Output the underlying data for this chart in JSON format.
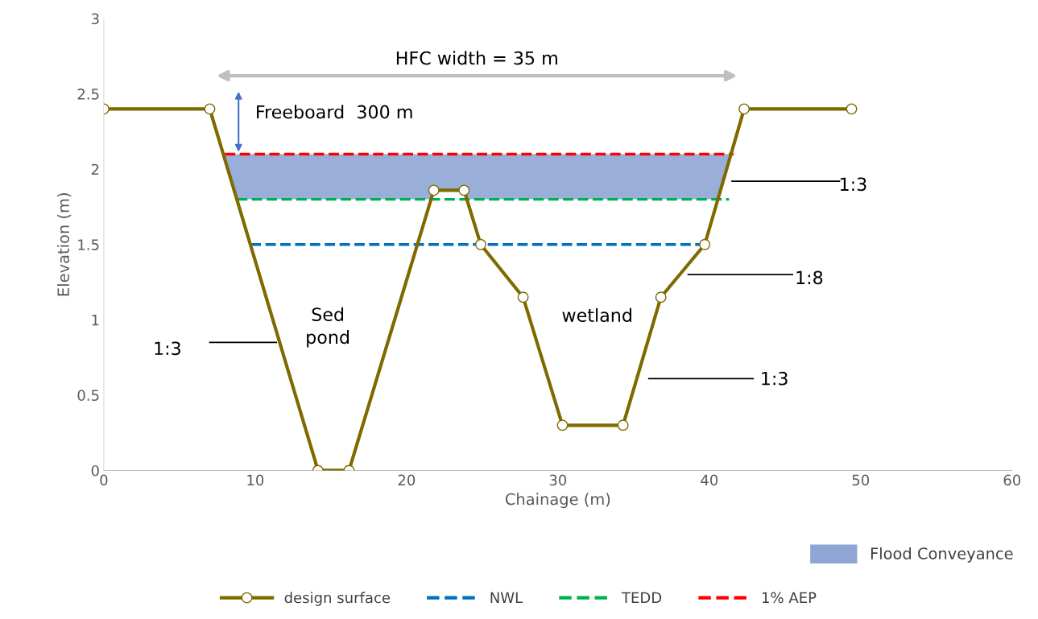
{
  "chart_data": {
    "type": "line",
    "xlabel": "Chainage (m)",
    "ylabel": "Elevation (m)",
    "xlim": [
      0,
      60
    ],
    "xticks": [
      0,
      10,
      20,
      30,
      40,
      50,
      60
    ],
    "ylim": [
      0,
      3
    ],
    "yticks": [
      0,
      0.5,
      1,
      1.5,
      2,
      2.5,
      3
    ],
    "grid": false,
    "legend": "bottom",
    "series": [
      {
        "name": "design surface",
        "color": "#7f6a00",
        "marker": "circle",
        "line_style": "solid",
        "x": [
          0,
          7.0,
          14.15,
          16.2,
          21.8,
          23.8,
          24.9,
          27.7,
          30.3,
          34.3,
          36.8,
          39.7,
          42.3,
          49.4
        ],
        "values": [
          2.4,
          2.4,
          0,
          0,
          1.86,
          1.86,
          1.5,
          1.15,
          0.3,
          0.3,
          1.15,
          1.5,
          2.4,
          2.4
        ]
      },
      {
        "name": "NWL",
        "color": "#0070c0",
        "marker": "none",
        "line_style": "dashed",
        "x": [
          9.7,
          39.7
        ],
        "values": [
          1.5,
          1.5
        ]
      },
      {
        "name": "TEDD",
        "color": "#00b050",
        "marker": "none",
        "line_style": "dashed",
        "x": [
          8.8,
          41.3
        ],
        "values": [
          1.8,
          1.8
        ]
      },
      {
        "name": "1% AEP",
        "color": "#ff0000",
        "marker": "none",
        "line_style": "dashed",
        "x": [
          8.0,
          41.6
        ],
        "values": [
          2.1,
          2.1
        ]
      }
    ],
    "bands": [
      {
        "axis": "y",
        "from": 1.8,
        "to": 2.1,
        "label": "Flood Conveyance",
        "color": "#8fa5d6"
      }
    ],
    "annotations": [
      "HFC width = 35 m",
      "Freeboard  300 m",
      "1:3",
      "1:3",
      "1:8",
      "1:3",
      "Sed\npond",
      "wetland"
    ]
  }
}
